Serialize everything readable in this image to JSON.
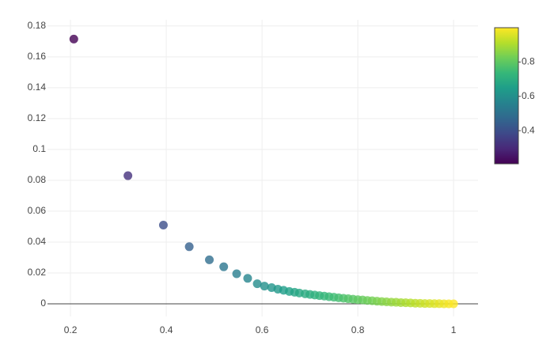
{
  "chart_data": {
    "type": "scatter",
    "x": [
      0.207,
      0.32,
      0.394,
      0.448,
      0.49,
      0.52,
      0.547,
      0.57,
      0.59,
      0.605,
      0.62,
      0.633,
      0.645,
      0.657,
      0.668,
      0.678,
      0.69,
      0.7,
      0.71,
      0.72,
      0.73,
      0.74,
      0.75,
      0.76,
      0.77,
      0.78,
      0.79,
      0.8,
      0.81,
      0.82,
      0.83,
      0.84,
      0.85,
      0.86,
      0.87,
      0.88,
      0.89,
      0.9,
      0.91,
      0.92,
      0.93,
      0.94,
      0.95,
      0.96,
      0.97,
      0.98,
      0.99,
      1.0
    ],
    "values": [
      0.1715,
      0.083,
      0.051,
      0.037,
      0.0285,
      0.024,
      0.0195,
      0.0165,
      0.013,
      0.0115,
      0.0105,
      0.0095,
      0.0088,
      0.008,
      0.0075,
      0.007,
      0.0065,
      0.0061,
      0.0057,
      0.0053,
      0.005,
      0.0046,
      0.0043,
      0.0039,
      0.0036,
      0.0033,
      0.003,
      0.0027,
      0.0025,
      0.0022,
      0.002,
      0.0017,
      0.0015,
      0.0013,
      0.0011,
      0.001,
      0.0008,
      0.0007,
      0.0006,
      0.0004,
      0.0003,
      0.0002,
      0.0002,
      0.0001,
      0.0001,
      0,
      0,
      0
    ],
    "xlim": [
      0.152,
      1.051
    ],
    "ylim": [
      -0.0082,
      0.184
    ],
    "xticks": [
      0.2,
      0.4,
      0.6,
      0.8,
      1
    ],
    "yticks": [
      0,
      0.02,
      0.04,
      0.06,
      0.08,
      0.1,
      0.12,
      0.14,
      0.16,
      0.18
    ],
    "grid": true,
    "colorscale": [
      "#440154",
      "#482878",
      "#3e4989",
      "#31688e",
      "#26828e",
      "#1f9e89",
      "#35b779",
      "#6ece58",
      "#b5de2b",
      "#fde725"
    ],
    "clim": [
      0.207,
      1
    ],
    "colorbar_ticks": [
      0.4,
      0.6,
      0.8
    ]
  }
}
